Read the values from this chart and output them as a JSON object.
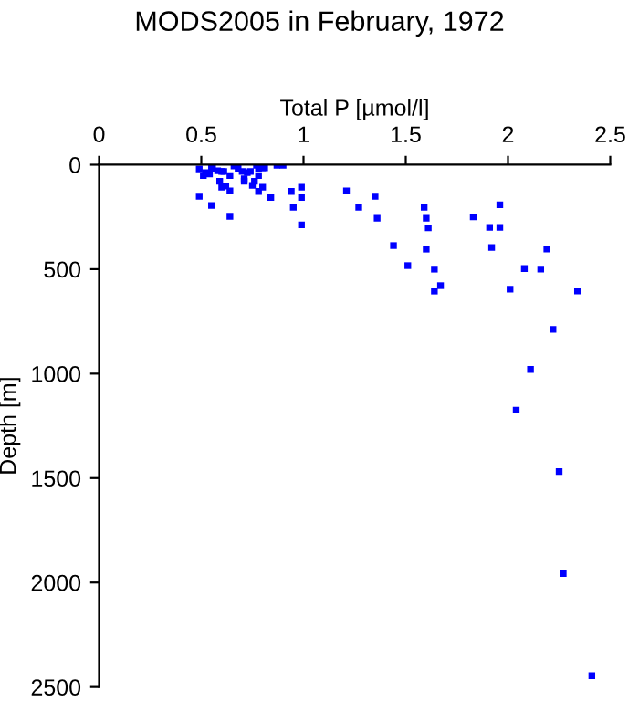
{
  "chart_data": {
    "type": "scatter",
    "title": "MODS2005 in February, 1972",
    "xlabel": "Total P [µmol/l]",
    "ylabel": "Depth [m]",
    "xlim": [
      0,
      2.5
    ],
    "xticks": [
      0,
      0.5,
      1,
      1.5,
      2,
      2.5
    ],
    "ylim": [
      2500,
      0
    ],
    "yticks": [
      0,
      500,
      1000,
      1500,
      2000,
      2500
    ],
    "grid": false,
    "marker": "square",
    "series": [
      {
        "color": "#0000ff",
        "x": [
          0.49,
          0.51,
          0.52,
          0.54,
          0.55,
          0.555,
          0.58,
          0.6,
          0.61,
          0.59,
          0.6,
          0.62,
          0.64,
          0.64,
          0.66,
          0.68,
          0.7,
          0.71,
          0.71,
          0.725,
          0.74,
          0.75,
          0.76,
          0.77,
          0.78,
          0.78,
          0.8,
          0.81,
          0.8,
          0.78,
          0.84,
          0.87,
          0.9,
          0.49,
          0.55,
          0.64,
          0.94,
          0.95,
          0.99,
          0.99,
          0.99,
          1.21,
          1.27,
          1.35,
          1.36,
          1.59,
          1.6,
          1.61,
          1.44,
          1.51,
          1.6,
          1.64,
          1.67,
          1.64,
          1.83,
          1.91,
          1.92,
          1.96,
          1.96,
          2.08,
          2.16,
          2.19,
          2.01,
          2.34,
          2.22,
          2.11,
          2.04,
          2.25,
          2.27,
          2.41
        ],
        "values": [
          20,
          52,
          38,
          44,
          17,
          3,
          29,
          32,
          32,
          79,
          108,
          102,
          125,
          52,
          6,
          17,
          32,
          67,
          79,
          38,
          32,
          99,
          79,
          3,
          17,
          52,
          15,
          15,
          108,
          128,
          157,
          3,
          3,
          151,
          195,
          247,
          128,
          204,
          108,
          157,
          288,
          125,
          204,
          151,
          256,
          204,
          256,
          302,
          387,
          483,
          404,
          500,
          579,
          605,
          250,
          300,
          396,
          192,
          300,
          497,
          500,
          404,
          596,
          605,
          788,
          980,
          1175,
          1469,
          1957,
          2446
        ]
      }
    ]
  }
}
